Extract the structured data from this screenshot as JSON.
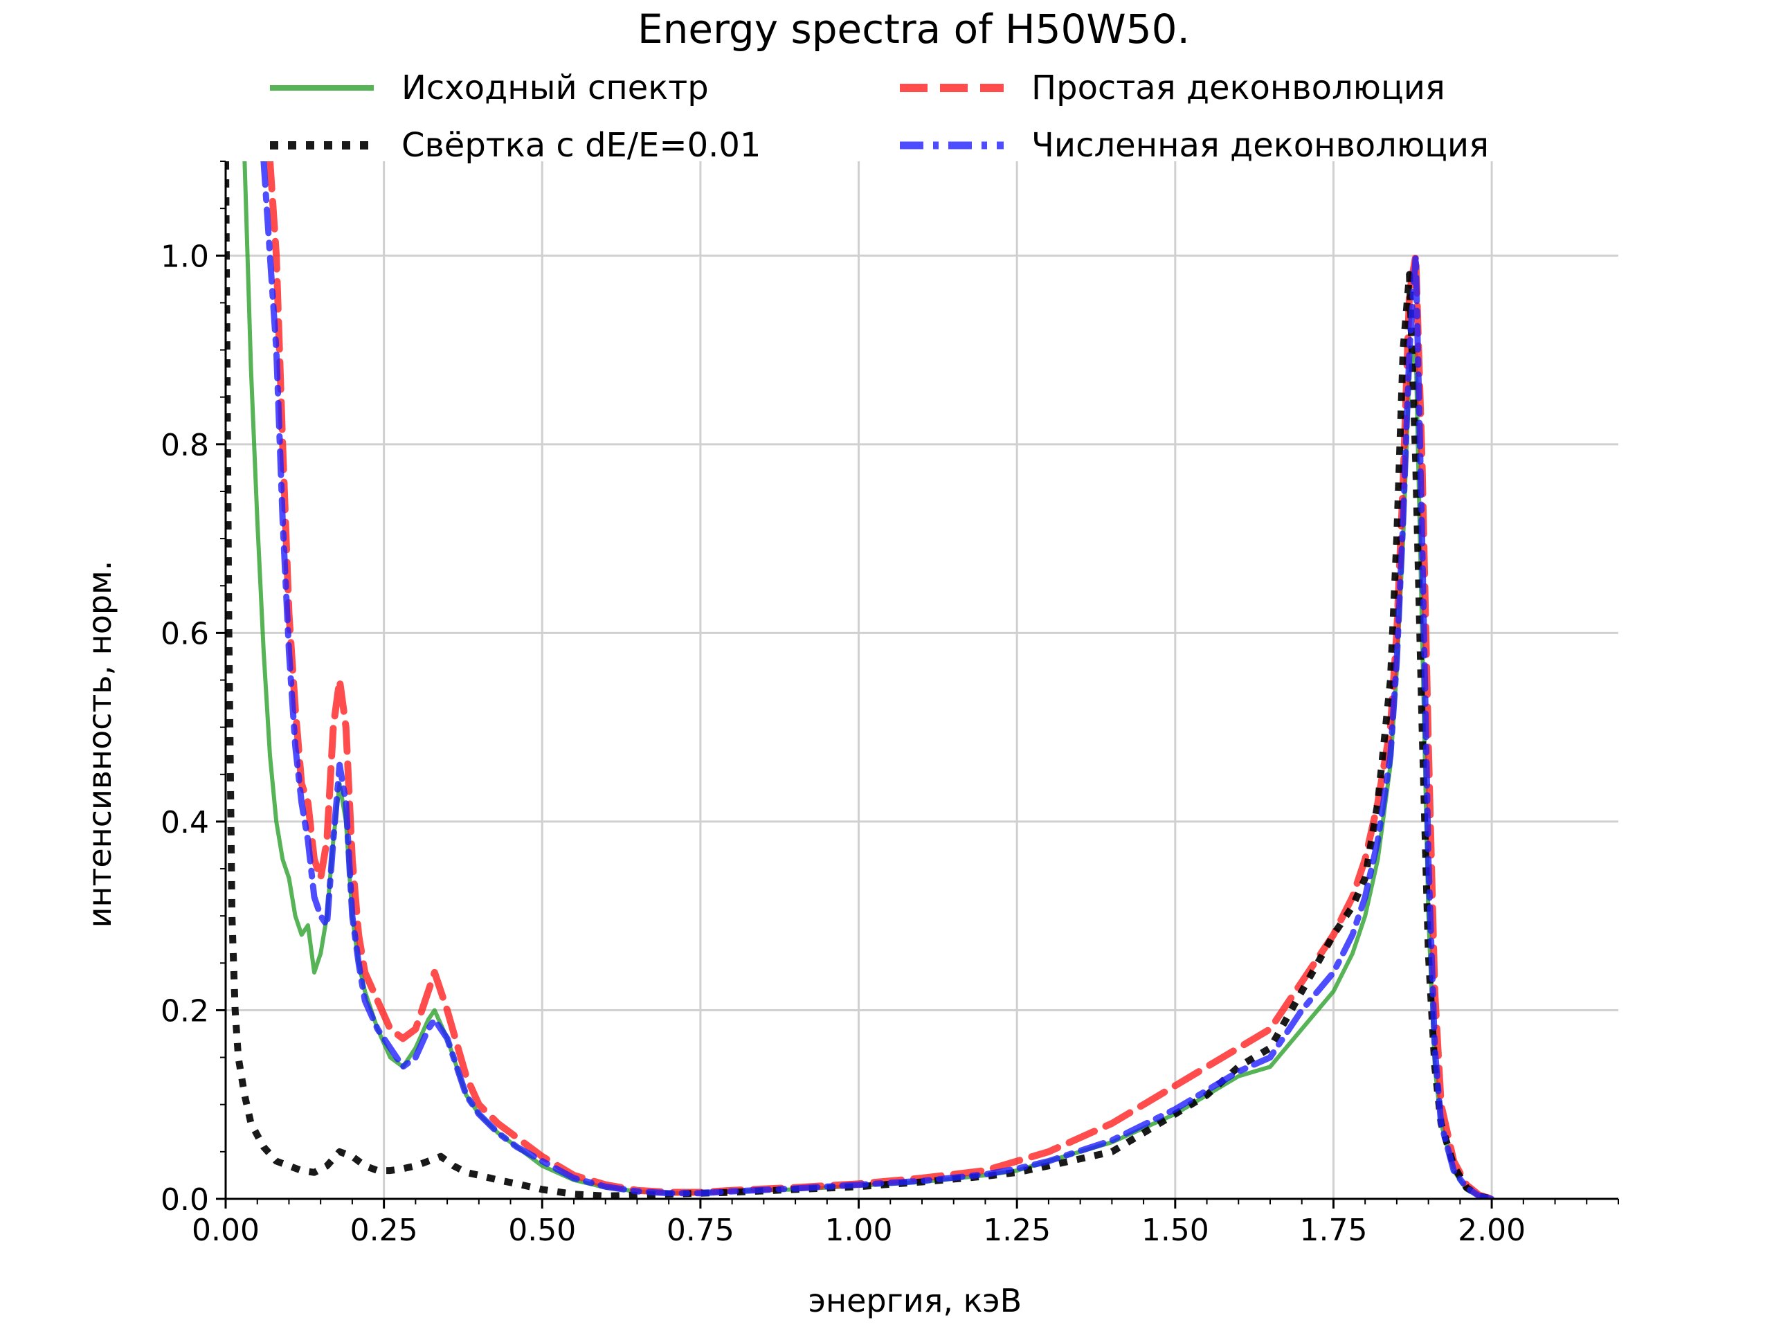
{
  "chart_data": {
    "type": "line",
    "title": "Energy spectra of H50W50.",
    "xlabel": "энергия, кэВ",
    "ylabel": "интенсивность, норм.",
    "xlim": [
      0.0,
      2.2
    ],
    "ylim": [
      0.0,
      1.1
    ],
    "grid": true,
    "legend_position": "top, two columns",
    "x_ticks": [
      0.0,
      0.25,
      0.5,
      0.75,
      1.0,
      1.25,
      1.5,
      1.75,
      2.0
    ],
    "x_tick_labels": [
      "0.00",
      "0.25",
      "0.50",
      "0.75",
      "1.00",
      "1.25",
      "1.50",
      "1.75",
      "2.00"
    ],
    "y_ticks": [
      0.0,
      0.2,
      0.4,
      0.6,
      0.8,
      1.0
    ],
    "y_tick_labels": [
      "0.0",
      "0.2",
      "0.4",
      "0.6",
      "0.8",
      "1.0"
    ],
    "series": [
      {
        "name": "Исходный спектр",
        "color": "#2ca02c",
        "style": "solid",
        "x": [
          0.03,
          0.04,
          0.05,
          0.06,
          0.07,
          0.08,
          0.09,
          0.1,
          0.11,
          0.12,
          0.13,
          0.14,
          0.15,
          0.16,
          0.17,
          0.18,
          0.19,
          0.2,
          0.21,
          0.22,
          0.24,
          0.26,
          0.28,
          0.3,
          0.32,
          0.33,
          0.35,
          0.38,
          0.4,
          0.43,
          0.46,
          0.5,
          0.55,
          0.6,
          0.65,
          0.7,
          0.75,
          0.8,
          0.9,
          1.0,
          1.1,
          1.2,
          1.25,
          1.3,
          1.4,
          1.5,
          1.55,
          1.6,
          1.65,
          1.7,
          1.75,
          1.78,
          1.8,
          1.82,
          1.84,
          1.85,
          1.86,
          1.87,
          1.88,
          1.89,
          1.9,
          1.91,
          1.92,
          1.94,
          1.96,
          1.98,
          2.0
        ],
        "y": [
          1.1,
          0.88,
          0.72,
          0.58,
          0.47,
          0.4,
          0.36,
          0.34,
          0.3,
          0.28,
          0.29,
          0.24,
          0.26,
          0.3,
          0.38,
          0.44,
          0.4,
          0.3,
          0.25,
          0.22,
          0.18,
          0.15,
          0.14,
          0.16,
          0.19,
          0.2,
          0.17,
          0.11,
          0.09,
          0.07,
          0.055,
          0.035,
          0.02,
          0.012,
          0.008,
          0.006,
          0.006,
          0.008,
          0.01,
          0.014,
          0.018,
          0.025,
          0.03,
          0.04,
          0.06,
          0.09,
          0.11,
          0.13,
          0.14,
          0.18,
          0.22,
          0.26,
          0.3,
          0.36,
          0.46,
          0.56,
          0.7,
          0.88,
          0.9,
          0.6,
          0.3,
          0.14,
          0.08,
          0.03,
          0.01,
          0.003,
          0.0
        ]
      },
      {
        "name": "Простая деконволюция",
        "color": "#ff2020",
        "style": "dashed",
        "x": [
          0.07,
          0.08,
          0.09,
          0.1,
          0.11,
          0.12,
          0.13,
          0.14,
          0.15,
          0.16,
          0.17,
          0.18,
          0.19,
          0.2,
          0.21,
          0.22,
          0.24,
          0.26,
          0.28,
          0.3,
          0.32,
          0.33,
          0.35,
          0.38,
          0.4,
          0.43,
          0.46,
          0.5,
          0.55,
          0.6,
          0.65,
          0.7,
          0.75,
          0.8,
          0.9,
          1.0,
          1.1,
          1.2,
          1.25,
          1.3,
          1.4,
          1.5,
          1.55,
          1.6,
          1.65,
          1.7,
          1.75,
          1.78,
          1.8,
          1.82,
          1.84,
          1.85,
          1.86,
          1.87,
          1.88,
          1.89,
          1.9,
          1.91,
          1.92,
          1.94,
          1.96,
          1.98,
          2.0
        ],
        "y": [
          1.1,
          1.0,
          0.8,
          0.62,
          0.52,
          0.44,
          0.42,
          0.36,
          0.34,
          0.38,
          0.5,
          0.55,
          0.5,
          0.36,
          0.28,
          0.24,
          0.21,
          0.18,
          0.17,
          0.18,
          0.22,
          0.24,
          0.2,
          0.13,
          0.1,
          0.08,
          0.065,
          0.045,
          0.025,
          0.015,
          0.009,
          0.007,
          0.007,
          0.009,
          0.012,
          0.016,
          0.022,
          0.03,
          0.04,
          0.05,
          0.08,
          0.12,
          0.14,
          0.16,
          0.18,
          0.23,
          0.28,
          0.32,
          0.36,
          0.42,
          0.5,
          0.6,
          0.76,
          0.96,
          1.0,
          0.78,
          0.48,
          0.22,
          0.1,
          0.04,
          0.015,
          0.004,
          0.0
        ]
      },
      {
        "name": "Свёртка с dE/E=0.01",
        "color": "#000000",
        "style": "dotted",
        "x": [
          0.0,
          0.005,
          0.01,
          0.015,
          0.02,
          0.03,
          0.04,
          0.06,
          0.08,
          0.1,
          0.12,
          0.14,
          0.16,
          0.18,
          0.2,
          0.22,
          0.24,
          0.26,
          0.28,
          0.3,
          0.32,
          0.34,
          0.36,
          0.38,
          0.4,
          0.43,
          0.46,
          0.5,
          0.55,
          0.6,
          0.65,
          0.7,
          0.75,
          0.8,
          0.9,
          1.0,
          1.1,
          1.2,
          1.25,
          1.3,
          1.4,
          1.5,
          1.55,
          1.6,
          1.65,
          1.7,
          1.75,
          1.78,
          1.8,
          1.82,
          1.84,
          1.85,
          1.86,
          1.87,
          1.88,
          1.89,
          1.9,
          1.91,
          1.92,
          1.94,
          1.96,
          1.98,
          2.0
        ],
        "y": [
          1.1,
          0.6,
          0.3,
          0.2,
          0.15,
          0.11,
          0.08,
          0.055,
          0.04,
          0.035,
          0.03,
          0.028,
          0.035,
          0.05,
          0.045,
          0.035,
          0.03,
          0.03,
          0.032,
          0.035,
          0.04,
          0.045,
          0.035,
          0.028,
          0.025,
          0.02,
          0.016,
          0.01,
          0.005,
          0.003,
          0.004,
          0.005,
          0.006,
          0.007,
          0.01,
          0.013,
          0.018,
          0.024,
          0.028,
          0.035,
          0.05,
          0.09,
          0.11,
          0.14,
          0.16,
          0.22,
          0.28,
          0.31,
          0.34,
          0.42,
          0.55,
          0.7,
          0.9,
          0.98,
          0.78,
          0.5,
          0.26,
          0.14,
          0.08,
          0.035,
          0.012,
          0.003,
          0.0
        ]
      },
      {
        "name": "Численная деконволюция",
        "color": "#2020ff",
        "style": "dashdot",
        "x": [
          0.06,
          0.07,
          0.08,
          0.09,
          0.1,
          0.11,
          0.12,
          0.13,
          0.14,
          0.15,
          0.16,
          0.17,
          0.18,
          0.19,
          0.2,
          0.21,
          0.22,
          0.24,
          0.26,
          0.28,
          0.3,
          0.32,
          0.33,
          0.35,
          0.38,
          0.4,
          0.43,
          0.46,
          0.5,
          0.55,
          0.6,
          0.65,
          0.7,
          0.75,
          0.8,
          0.9,
          1.0,
          1.1,
          1.2,
          1.25,
          1.3,
          1.4,
          1.5,
          1.55,
          1.6,
          1.65,
          1.7,
          1.75,
          1.78,
          1.8,
          1.82,
          1.84,
          1.85,
          1.86,
          1.87,
          1.88,
          1.89,
          1.9,
          1.91,
          1.92,
          1.94,
          1.96,
          1.98,
          2.0
        ],
        "y": [
          1.1,
          1.0,
          0.9,
          0.72,
          0.58,
          0.48,
          0.42,
          0.38,
          0.32,
          0.3,
          0.29,
          0.38,
          0.46,
          0.42,
          0.3,
          0.25,
          0.21,
          0.18,
          0.16,
          0.14,
          0.15,
          0.18,
          0.19,
          0.17,
          0.11,
          0.09,
          0.07,
          0.055,
          0.04,
          0.022,
          0.013,
          0.008,
          0.006,
          0.006,
          0.008,
          0.011,
          0.015,
          0.019,
          0.026,
          0.032,
          0.04,
          0.062,
          0.095,
          0.115,
          0.135,
          0.15,
          0.2,
          0.24,
          0.28,
          0.32,
          0.38,
          0.47,
          0.57,
          0.72,
          0.9,
          1.0,
          0.7,
          0.36,
          0.16,
          0.08,
          0.03,
          0.012,
          0.003,
          0.0
        ]
      }
    ]
  }
}
